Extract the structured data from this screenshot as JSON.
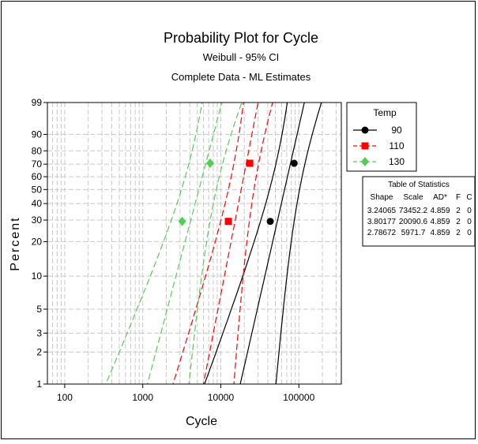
{
  "chart_data": {
    "type": "scatter",
    "title": "Probability Plot for Cycle",
    "subtitle_1": "Weibull - 95% CI",
    "subtitle_2": "Complete Data - ML Estimates",
    "xlabel": "Cycle",
    "ylabel": "Percent",
    "x_scale": "log",
    "y_scale": "weibull-probability",
    "xlim": [
      60,
      350000
    ],
    "ylim": [
      1,
      99
    ],
    "x_ticks": [
      100,
      1000,
      10000,
      100000
    ],
    "x_tick_labels": [
      "100",
      "1000",
      "10000",
      "100000"
    ],
    "y_ticks": [
      1,
      2,
      3,
      5,
      10,
      20,
      30,
      40,
      50,
      60,
      70,
      80,
      90,
      99
    ],
    "y_tick_labels": [
      "1",
      "2",
      "3",
      "5",
      "10",
      "20",
      "30",
      "40",
      "50",
      "60",
      "70",
      "80",
      "90",
      "99"
    ],
    "grid": true,
    "legend": {
      "title": "Temp",
      "position": "right"
    },
    "series": [
      {
        "name": "90",
        "color": "#000000",
        "marker": "circle",
        "line": "solid",
        "shape": 3.24065,
        "scale": 73452.2,
        "points": [
          {
            "x": 43000,
            "y": 29.3
          },
          {
            "x": 87000,
            "y": 70.7
          }
        ]
      },
      {
        "name": "110",
        "color": "#ff0000",
        "marker": "square",
        "line": "dashed",
        "shape": 3.80177,
        "scale": 20090.6,
        "points": [
          {
            "x": 12500,
            "y": 29.3
          },
          {
            "x": 23500,
            "y": 70.7
          }
        ]
      },
      {
        "name": "130",
        "color": "#55cc55",
        "marker": "diamond",
        "line": "dashed",
        "shape": 2.78672,
        "scale": 5971.7,
        "points": [
          {
            "x": 3200,
            "y": 29.3
          },
          {
            "x": 7300,
            "y": 70.7
          }
        ]
      }
    ],
    "stats_table": {
      "title": "Table of Statistics",
      "columns": [
        "Shape",
        "Scale",
        "AD*",
        "F",
        "C"
      ],
      "rows": [
        [
          "3.24065",
          "73452.2",
          "4.859",
          "2",
          "0"
        ],
        [
          "3.80177",
          "20090.6",
          "4.859",
          "2",
          "0"
        ],
        [
          "2.78672",
          "5971.7",
          "4.859",
          "2",
          "0"
        ]
      ]
    }
  }
}
